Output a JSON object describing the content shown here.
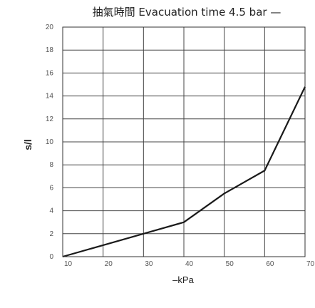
{
  "chart_data": {
    "type": "line",
    "title": "抽氣時間 Evacuation time 4.5 bar —",
    "xlabel": "–kPa",
    "ylabel": "s/l",
    "xlim": [
      10,
      70
    ],
    "ylim": [
      0,
      20
    ],
    "x_ticks": [
      10,
      20,
      30,
      40,
      50,
      60,
      70
    ],
    "y_ticks": [
      0,
      2,
      4,
      6,
      8,
      10,
      12,
      14,
      16,
      18,
      20
    ],
    "grid": true,
    "series": [
      {
        "x": [
          10,
          20,
          30,
          40,
          50,
          60,
          70
        ],
        "values": [
          0,
          1,
          2,
          3,
          5.5,
          7.5,
          14.8
        ],
        "color": "#1a1a1a"
      }
    ]
  }
}
